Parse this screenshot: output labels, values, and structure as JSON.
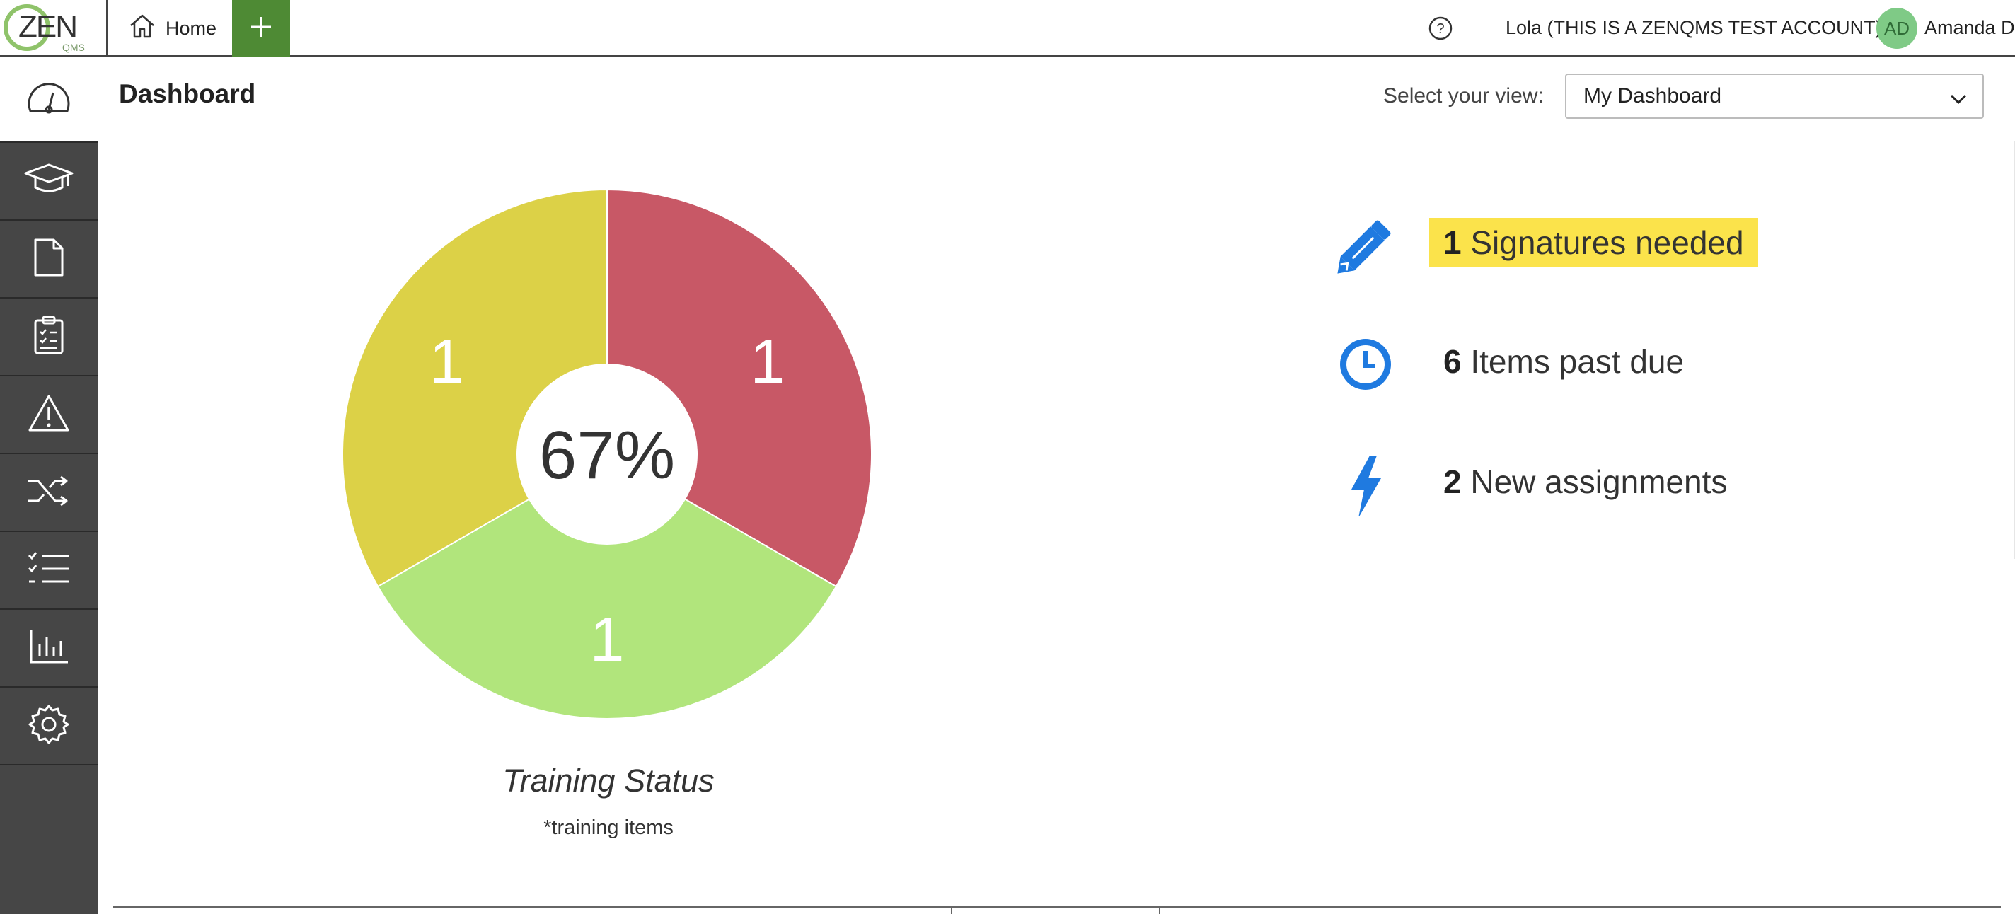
{
  "topbar": {
    "logo_text": "ZEN",
    "logo_sub": "QMS",
    "home_label": "Home",
    "account_label": "Lola (THIS IS A ZENQMS TEST ACCOUNT)",
    "avatar_initials": "AD",
    "user_name": "Amanda D"
  },
  "sidebar": {
    "items": [
      {
        "icon": "dashboard-gauge-icon",
        "active": true
      },
      {
        "icon": "graduation-cap-icon"
      },
      {
        "icon": "document-icon"
      },
      {
        "icon": "clipboard-checklist-icon"
      },
      {
        "icon": "warning-triangle-icon"
      },
      {
        "icon": "shuffle-icon"
      },
      {
        "icon": "checklist-icon"
      },
      {
        "icon": "bar-chart-icon"
      },
      {
        "icon": "gear-icon"
      }
    ]
  },
  "header": {
    "title": "Dashboard",
    "view_label": "Select your view:",
    "view_selected": "My Dashboard"
  },
  "chart_data": {
    "type": "pie",
    "title": "Training Status",
    "subtitle": "*training items",
    "center_label": "67%",
    "slices": [
      {
        "value": 1,
        "color": "#c85866"
      },
      {
        "value": 1,
        "color": "#b1e57c"
      },
      {
        "value": 1,
        "color": "#dcd147"
      }
    ]
  },
  "stats": [
    {
      "count": "1",
      "label": "Signatures needed",
      "icon": "pencil-icon",
      "highlight": true
    },
    {
      "count": "6",
      "label": "Items past due",
      "icon": "clock-icon"
    },
    {
      "count": "2",
      "label": "New assignments",
      "icon": "lightning-icon"
    }
  ],
  "colors": {
    "sidebar_bg": "#464646",
    "brand_green": "#4e8a34",
    "icon_blue": "#1f7ae0",
    "highlight_yellow": "#fbe34b"
  }
}
